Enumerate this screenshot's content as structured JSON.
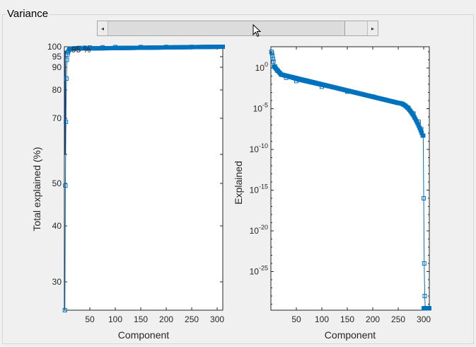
{
  "panel": {
    "title": "Variance"
  },
  "scrollbar": {
    "left_arrow": "◂",
    "right_arrow": "▸"
  },
  "chart_data": [
    {
      "type": "line",
      "xlabel": "Component",
      "ylabel": "Total explained (%)",
      "annotation": "95 %",
      "xlim": [
        0,
        311
      ],
      "x_ticks": [
        50,
        100,
        150,
        200,
        250,
        300
      ],
      "y_ticks": [
        30,
        40,
        50,
        60,
        70,
        80,
        90,
        95,
        100
      ],
      "y_tick_labels": [
        "30",
        "40",
        "50",
        "",
        "70",
        "80",
        "90",
        "95",
        "100"
      ],
      "series": [
        {
          "x": [
            1,
            2,
            3,
            4,
            5,
            6,
            7,
            8,
            10,
            12,
            15,
            20,
            25,
            30,
            40,
            50,
            75,
            100,
            150,
            200,
            250,
            300,
            311
          ],
          "y": [
            25,
            49.5,
            69,
            85,
            93.5,
            96,
            97.2,
            98,
            98.5,
            98.8,
            99,
            99.2,
            99.3,
            99.4,
            99.5,
            99.6,
            99.7,
            99.8,
            99.85,
            99.9,
            99.95,
            99.99,
            100
          ]
        }
      ]
    },
    {
      "type": "line",
      "xlabel": "Component",
      "ylabel": "Explained",
      "yscale": "log",
      "xlim": [
        0,
        311
      ],
      "ylim_exp": [
        -30,
        2
      ],
      "x_ticks": [
        50,
        100,
        150,
        200,
        250,
        300
      ],
      "y_tick_exps": [
        0,
        -5,
        -10,
        -15,
        -20,
        -25
      ],
      "y_tick_labels": [
        "10",
        "10",
        "10",
        "10",
        "10",
        "10"
      ],
      "y_tick_superscripts": [
        "0",
        "-5",
        "-10",
        "-15",
        "-20",
        "-25"
      ],
      "series": [
        {
          "x": [
            1,
            2,
            3,
            4,
            5,
            8,
            12,
            20,
            30,
            50,
            100,
            150,
            200,
            250,
            270,
            280,
            290,
            295,
            299,
            300,
            301,
            302,
            303,
            304,
            305,
            311
          ],
          "y_exp": [
            2,
            1.8,
            1.5,
            1.1,
            0.8,
            0.2,
            -0.3,
            -0.8,
            -1.2,
            -1.6,
            -2.3,
            -2.9,
            -3.5,
            -4.3,
            -4.9,
            -5.6,
            -6.6,
            -7.5,
            -8.3,
            -16,
            -24,
            -28,
            -29.5,
            -29.5,
            -29.5,
            -29.5
          ]
        }
      ]
    }
  ]
}
